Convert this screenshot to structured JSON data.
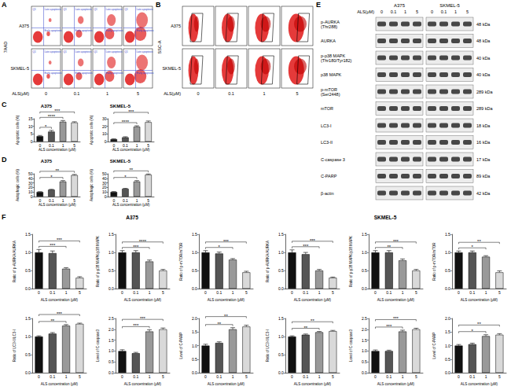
{
  "panels": {
    "A": {
      "label": "A",
      "row_labels": [
        "A375",
        "SKMEL-5"
      ],
      "y_label": "7AAD",
      "x_label": "ALS(μM)",
      "doses": [
        "0",
        "0.1",
        "1",
        "5"
      ],
      "quadrants": [
        "Q1",
        "Late apoptosis",
        "Early apoptosis"
      ]
    },
    "B": {
      "label": "B",
      "row_labels": [
        "A375",
        "SKMEL-5"
      ],
      "y_label": "SSC-A",
      "x_label": "ALS(μM)",
      "doses": [
        "0",
        "0.1",
        "1",
        "5"
      ]
    },
    "C": {
      "label": "C"
    },
    "D": {
      "label": "D"
    },
    "E": {
      "label": "E",
      "dose_header": "ALS(μM)",
      "cell_lines": [
        "A375",
        "SKMEL-5"
      ],
      "doses": [
        "0",
        "0.1",
        "1",
        "5"
      ],
      "rows": [
        {
          "name": "p-AURKA (Thr288)",
          "size": "48 kDa"
        },
        {
          "name": "AURKA",
          "size": "48 kDa"
        },
        {
          "name": "p-p38 MAPK (Thr180/Tyr182)",
          "size": "40 kDa"
        },
        {
          "name": "p38 MAPK",
          "size": "40 kDa"
        },
        {
          "name": "p-mTOR (Ser2448)",
          "size": "289 kDa"
        },
        {
          "name": "mTOR",
          "size": "289 kDa"
        },
        {
          "name": "LC3-I",
          "size": "18 kDa"
        },
        {
          "name": "LC3-II",
          "size": "16 kDa"
        },
        {
          "name": "C-caspase 3",
          "size": "17 kDa"
        },
        {
          "name": "C-PARP",
          "size": "89 kDa"
        },
        {
          "name": "β-actin",
          "size": "42 kDa"
        }
      ]
    },
    "F": {
      "label": "F",
      "group_titles": [
        "A375",
        "SKMEL-5"
      ]
    }
  },
  "chart_data": [
    {
      "type": "bar",
      "title": "A375",
      "categories": [
        "0",
        "0.1",
        "1",
        "5"
      ],
      "values": [
        3.5,
        6.5,
        13,
        12.5
      ],
      "errors": [
        0.5,
        0.8,
        0.8,
        0.5
      ],
      "colors": [
        "#111111",
        "#555555",
        "#999999",
        "#d9d9d9"
      ],
      "x_label": "ALS concentration (μM)",
      "y_label": "Apoptotic cells (%)",
      "ylim": [
        0,
        15
      ],
      "yticks": [
        0,
        5,
        10,
        15
      ],
      "grid": false,
      "annotations": [
        {
          "from": 0,
          "to": 1,
          "text": "*"
        },
        {
          "from": 0,
          "to": 2,
          "text": "****"
        },
        {
          "from": 0,
          "to": 3,
          "text": "***"
        }
      ]
    },
    {
      "type": "bar",
      "title": "SKMEL-5",
      "categories": [
        "0",
        "0.1",
        "1",
        "5"
      ],
      "values": [
        3,
        5.5,
        19.5,
        25.5
      ],
      "errors": [
        0.5,
        0.8,
        1.2,
        1.5
      ],
      "colors": [
        "#111111",
        "#555555",
        "#999999",
        "#d9d9d9"
      ],
      "x_label": "ALS concentration (μM)",
      "y_label": "Apoptotic cells (%)",
      "ylim": [
        0,
        30
      ],
      "yticks": [
        0,
        10,
        20,
        30
      ],
      "grid": false,
      "annotations": [
        {
          "from": 0,
          "to": 2,
          "text": "****"
        },
        {
          "from": 0,
          "to": 3,
          "text": "***"
        }
      ]
    },
    {
      "type": "bar",
      "title": "A375",
      "categories": [
        "0",
        "0.1",
        "1",
        "5"
      ],
      "values": [
        10,
        15,
        33,
        47
      ],
      "errors": [
        0.8,
        1,
        2,
        1.5
      ],
      "colors": [
        "#111111",
        "#555555",
        "#999999",
        "#d9d9d9"
      ],
      "x_label": "ALS concentration (μM)",
      "y_label": "Autophagic cells (%)",
      "ylim": [
        0,
        50
      ],
      "yticks": [
        0,
        10,
        20,
        30,
        40,
        50
      ],
      "grid": false,
      "annotations": [
        {
          "from": 0,
          "to": 2,
          "text": "*"
        },
        {
          "from": 0,
          "to": 3,
          "text": "**"
        }
      ]
    },
    {
      "type": "bar",
      "title": "SKMEL-5",
      "categories": [
        "0",
        "0.1",
        "1",
        "5"
      ],
      "values": [
        10,
        17,
        33,
        48
      ],
      "errors": [
        1,
        1,
        2,
        1.5
      ],
      "colors": [
        "#111111",
        "#555555",
        "#999999",
        "#d9d9d9"
      ],
      "x_label": "ALS concentration (μM)",
      "y_label": "Autophagic cells (%)",
      "ylim": [
        0,
        50
      ],
      "yticks": [
        0,
        10,
        20,
        30,
        40,
        50
      ],
      "grid": false,
      "annotations": [
        {
          "from": 0,
          "to": 2,
          "text": "*"
        },
        {
          "from": 0,
          "to": 3,
          "text": "**"
        }
      ]
    },
    {
      "type": "bar",
      "categories": [
        "0",
        "0.1",
        "1",
        "5"
      ],
      "values": [
        1.0,
        0.98,
        0.55,
        0.3
      ],
      "errors": [
        0.08,
        0.06,
        0.03,
        0.03
      ],
      "colors": [
        "#111111",
        "#555555",
        "#999999",
        "#d9d9d9"
      ],
      "x_label": "ALS concentration (μM)",
      "y_label": "Ratio of p-AURKA/AURKA",
      "ylim": [
        0,
        1.5
      ],
      "yticks": [
        {
          "value": 0,
          "label": "0.0"
        },
        0.5,
        {
          "value": 1,
          "label": "1.0"
        },
        1.5
      ],
      "grid": false,
      "annotations": [
        {
          "from": 0,
          "to": 2,
          "text": "***"
        },
        {
          "from": 0,
          "to": 3,
          "text": "***"
        }
      ]
    },
    {
      "type": "bar",
      "categories": [
        "0",
        "0.1",
        "1",
        "5"
      ],
      "values": [
        1.0,
        1.0,
        0.75,
        0.5
      ],
      "errors": [
        0.05,
        0.05,
        0.04,
        0.03
      ],
      "colors": [
        "#111111",
        "#555555",
        "#999999",
        "#d9d9d9"
      ],
      "x_label": "ALS concentration (μM)",
      "y_label": "Ratio of p-p38 MAPK/p38 MAPK",
      "ylim": [
        0,
        1.5
      ],
      "yticks": [
        {
          "value": 0,
          "label": "0.0"
        },
        0.5,
        {
          "value": 1,
          "label": "1.0"
        },
        1.5
      ],
      "grid": false,
      "annotations": [
        {
          "from": 0,
          "to": 2,
          "text": "***"
        },
        {
          "from": 0,
          "to": 3,
          "text": "****"
        }
      ]
    },
    {
      "type": "bar",
      "categories": [
        "0",
        "0.1",
        "1",
        "5"
      ],
      "values": [
        1.0,
        0.97,
        0.8,
        0.45
      ],
      "errors": [
        0.05,
        0.04,
        0.03,
        0.03
      ],
      "colors": [
        "#111111",
        "#555555",
        "#999999",
        "#d9d9d9"
      ],
      "x_label": "ALS concentration (μM)",
      "y_label": "Ratio of p-mTOR/mTOR",
      "ylim": [
        0,
        1.5
      ],
      "yticks": [
        {
          "value": 0,
          "label": "0.0"
        },
        0.5,
        {
          "value": 1,
          "label": "1.0"
        },
        1.5
      ],
      "grid": false,
      "annotations": [
        {
          "from": 0,
          "to": 2,
          "text": "*"
        },
        {
          "from": 0,
          "to": 3,
          "text": "***"
        }
      ]
    },
    {
      "type": "bar",
      "categories": [
        "0",
        "0.1",
        "1",
        "5"
      ],
      "values": [
        1.0,
        1.08,
        1.3,
        1.35
      ],
      "errors": [
        0.02,
        0.03,
        0.03,
        0.02
      ],
      "colors": [
        "#111111",
        "#555555",
        "#999999",
        "#d9d9d9"
      ],
      "x_label": "ALS concentration (μM)",
      "y_label": "Ratio of LC3-II/LC3-I",
      "ylim": [
        0,
        1.5
      ],
      "yticks": [
        {
          "value": 0,
          "label": "0.0"
        },
        0.5,
        {
          "value": 1,
          "label": "1.0"
        },
        1.5
      ],
      "grid": false,
      "annotations": [
        {
          "from": 0,
          "to": 2,
          "text": "**"
        },
        {
          "from": 0,
          "to": 3,
          "text": "***"
        }
      ]
    },
    {
      "type": "bar",
      "categories": [
        "0",
        "0.1",
        "1",
        "5"
      ],
      "values": [
        1.0,
        0.9,
        1.9,
        2.0
      ],
      "errors": [
        0.06,
        0.04,
        0.08,
        0.06
      ],
      "colors": [
        "#111111",
        "#555555",
        "#999999",
        "#d9d9d9"
      ],
      "x_label": "ALS concentration (μM)",
      "y_label": "Level of C-caspase3",
      "ylim": [
        0,
        2.5
      ],
      "yticks": [
        {
          "value": 0,
          "label": "0.0"
        },
        0.5,
        {
          "value": 1,
          "label": "1.0"
        },
        1.5,
        {
          "value": 2,
          "label": "2.0"
        },
        2.5
      ],
      "grid": false,
      "annotations": [
        {
          "from": 0,
          "to": 2,
          "text": "***"
        },
        {
          "from": 0,
          "to": 3,
          "text": "***"
        }
      ]
    },
    {
      "type": "bar",
      "categories": [
        "0",
        "0.1",
        "1",
        "5"
      ],
      "values": [
        1.0,
        1.1,
        1.6,
        1.7
      ],
      "errors": [
        0.05,
        0.04,
        0.06,
        0.05
      ],
      "colors": [
        "#111111",
        "#555555",
        "#999999",
        "#d9d9d9"
      ],
      "x_label": "ALS concentration (μM)",
      "y_label": "Level of C-PARP",
      "ylim": [
        0,
        2
      ],
      "yticks": [
        {
          "value": 0,
          "label": "0.0"
        },
        0.5,
        {
          "value": 1,
          "label": "1.0"
        },
        1.5,
        {
          "value": 2,
          "label": "2.0"
        }
      ],
      "grid": false,
      "annotations": [
        {
          "from": 0,
          "to": 2,
          "text": "**"
        },
        {
          "from": 0,
          "to": 3,
          "text": "**"
        }
      ]
    },
    {
      "type": "bar",
      "categories": [
        "0",
        "0.1",
        "1",
        "5"
      ],
      "values": [
        1.0,
        0.95,
        0.5,
        0.3
      ],
      "errors": [
        0.07,
        0.05,
        0.03,
        0.02
      ],
      "colors": [
        "#111111",
        "#555555",
        "#999999",
        "#d9d9d9"
      ],
      "x_label": "ALS concentration (μM)",
      "y_label": "Ratio of p-AURKA/AURKA",
      "ylim": [
        0,
        1.5
      ],
      "yticks": [
        {
          "value": 0,
          "label": "0.0"
        },
        0.5,
        {
          "value": 1,
          "label": "1.0"
        },
        1.5
      ],
      "grid": false,
      "annotations": [
        {
          "from": 0,
          "to": 2,
          "text": "***"
        },
        {
          "from": 0,
          "to": 3,
          "text": "***"
        }
      ]
    },
    {
      "type": "bar",
      "categories": [
        "0",
        "0.1",
        "1",
        "5"
      ],
      "values": [
        1.0,
        1.0,
        0.78,
        0.5
      ],
      "errors": [
        0.05,
        0.05,
        0.04,
        0.03
      ],
      "colors": [
        "#111111",
        "#555555",
        "#999999",
        "#d9d9d9"
      ],
      "x_label": "ALS concentration (μM)",
      "y_label": "Ratio of p-p38 MAPK/p38 MAPK",
      "ylim": [
        0,
        1.5
      ],
      "yticks": [
        {
          "value": 0,
          "label": "0.0"
        },
        0.5,
        {
          "value": 1,
          "label": "1.0"
        },
        1.5
      ],
      "grid": false,
      "annotations": [
        {
          "from": 0,
          "to": 2,
          "text": "**"
        },
        {
          "from": 0,
          "to": 3,
          "text": "***"
        }
      ]
    },
    {
      "type": "bar",
      "categories": [
        "0",
        "0.1",
        "1",
        "5"
      ],
      "values": [
        1.0,
        1.0,
        0.88,
        0.45
      ],
      "errors": [
        0.04,
        0.04,
        0.03,
        0.04
      ],
      "colors": [
        "#111111",
        "#555555",
        "#999999",
        "#d9d9d9"
      ],
      "x_label": "ALS concentration (μM)",
      "y_label": "Ratio of p-mTOR/mTOR",
      "ylim": [
        0,
        1.5
      ],
      "yticks": [
        {
          "value": 0,
          "label": "0.0"
        },
        0.5,
        {
          "value": 1,
          "label": "1.0"
        },
        1.5
      ],
      "grid": false,
      "annotations": [
        {
          "from": 0,
          "to": 2,
          "text": "*"
        },
        {
          "from": 0,
          "to": 3,
          "text": "**"
        }
      ]
    },
    {
      "type": "bar",
      "categories": [
        "0",
        "0.1",
        "1",
        "5"
      ],
      "values": [
        1.0,
        1.05,
        1.12,
        1.15
      ],
      "errors": [
        0.02,
        0.02,
        0.02,
        0.02
      ],
      "colors": [
        "#111111",
        "#555555",
        "#999999",
        "#d9d9d9"
      ],
      "x_label": "ALS concentration (μM)",
      "y_label": "Ratio of LC3-II/LC3-I",
      "ylim": [
        0,
        1.5
      ],
      "yticks": [
        {
          "value": 0,
          "label": "0.0"
        },
        0.5,
        {
          "value": 1,
          "label": "1.0"
        },
        1.5
      ],
      "grid": false,
      "annotations": [
        {
          "from": 0,
          "to": 2,
          "text": "**"
        },
        {
          "from": 0,
          "to": 3,
          "text": "**"
        }
      ]
    },
    {
      "type": "bar",
      "categories": [
        "0",
        "0.1",
        "1",
        "5"
      ],
      "values": [
        1.0,
        1.0,
        1.9,
        2.0
      ],
      "errors": [
        0.05,
        0.04,
        0.06,
        0.05
      ],
      "colors": [
        "#111111",
        "#555555",
        "#999999",
        "#d9d9d9"
      ],
      "x_label": "ALS concentration (μM)",
      "y_label": "Level of C-caspase3",
      "ylim": [
        0,
        2.5
      ],
      "yticks": [
        {
          "value": 0,
          "label": "0.0"
        },
        0.5,
        {
          "value": 1,
          "label": "1.0"
        },
        1.5,
        {
          "value": 2,
          "label": "2.0"
        },
        2.5
      ],
      "grid": false,
      "annotations": [
        {
          "from": 0,
          "to": 2,
          "text": "***"
        },
        {
          "from": 0,
          "to": 3,
          "text": "***"
        }
      ]
    },
    {
      "type": "bar",
      "categories": [
        "0",
        "0.1",
        "1",
        "5"
      ],
      "values": [
        1.0,
        1.05,
        1.35,
        1.4
      ],
      "errors": [
        0.04,
        0.04,
        0.05,
        0.04
      ],
      "colors": [
        "#111111",
        "#555555",
        "#999999",
        "#d9d9d9"
      ],
      "x_label": "ALS concentration (μM)",
      "y_label": "Level of C-PARP",
      "ylim": [
        0,
        2
      ],
      "yticks": [
        {
          "value": 0,
          "label": "0.0"
        },
        0.5,
        {
          "value": 1,
          "label": "1.0"
        },
        1.5,
        {
          "value": 2,
          "label": "2.0"
        }
      ],
      "grid": false,
      "annotations": [
        {
          "from": 0,
          "to": 2,
          "text": "*"
        },
        {
          "from": 0,
          "to": 3,
          "text": "**"
        }
      ]
    }
  ]
}
